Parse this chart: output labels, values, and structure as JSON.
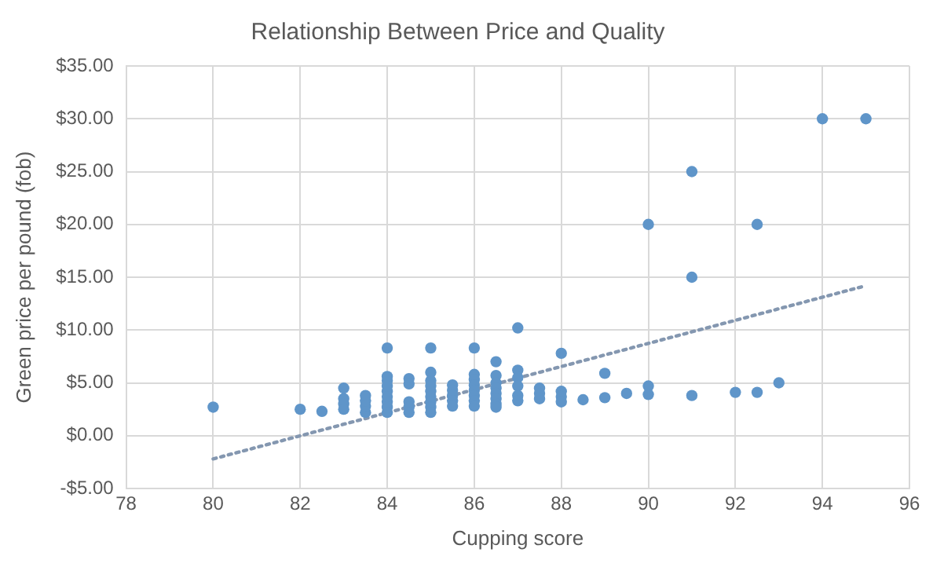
{
  "chart_data": {
    "type": "scatter",
    "title": "Relationship Between Price and Quality",
    "xlabel": "Cupping score",
    "ylabel": "Green price per pound (fob)",
    "xlim": [
      78,
      96
    ],
    "xticks": [
      78,
      80,
      82,
      84,
      86,
      88,
      90,
      92,
      94,
      96
    ],
    "ylim": [
      -5,
      35
    ],
    "yticks": [
      {
        "value": -5,
        "label": "-$5.00"
      },
      {
        "value": 0,
        "label": "$0.00"
      },
      {
        "value": 5,
        "label": "$5.00"
      },
      {
        "value": 10,
        "label": "$10.00"
      },
      {
        "value": 15,
        "label": "$15.00"
      },
      {
        "value": 20,
        "label": "$20.00"
      },
      {
        "value": 25,
        "label": "$25.00"
      },
      {
        "value": 30,
        "label": "$30.00"
      },
      {
        "value": 35,
        "label": "$35.00"
      }
    ],
    "grid": true,
    "legend": false,
    "marker": "circle",
    "series": [
      {
        "color": "#5f95c9",
        "x": [
          80,
          82,
          82.5,
          83,
          83,
          83,
          83,
          83.5,
          83.5,
          83.5,
          83.5,
          84,
          84,
          84,
          84,
          84,
          84,
          84,
          84,
          84,
          84.5,
          84.5,
          84.5,
          84.5,
          84.5,
          85,
          85,
          85,
          85,
          85,
          85,
          85,
          85,
          85,
          85.5,
          85.5,
          85.5,
          85.5,
          85.5,
          86,
          86,
          86,
          86,
          86,
          86,
          86,
          86,
          86.5,
          86.5,
          86.5,
          86.5,
          86.5,
          86.5,
          86.5,
          86.5,
          87,
          87,
          87,
          87,
          87,
          87,
          87.5,
          87.5,
          87.5,
          88,
          88,
          88,
          88,
          88.5,
          89,
          89,
          89.5,
          90,
          90,
          90,
          91,
          91,
          91,
          92,
          92.5,
          92.5,
          93,
          94,
          95
        ],
        "values": [
          2.7,
          2.5,
          2.3,
          4.5,
          3.5,
          3.0,
          2.5,
          2.2,
          2.8,
          3.3,
          3.8,
          8.3,
          2.2,
          2.7,
          3.2,
          3.7,
          4.2,
          4.7,
          5.2,
          5.6,
          5.4,
          4.9,
          3.2,
          2.7,
          2.2,
          8.3,
          6.0,
          5.2,
          4.7,
          4.2,
          3.7,
          3.2,
          2.7,
          2.2,
          4.8,
          4.3,
          3.8,
          3.3,
          2.8,
          8.3,
          5.8,
          5.3,
          4.8,
          4.3,
          3.8,
          3.3,
          2.8,
          7.0,
          5.7,
          5.0,
          4.5,
          4.0,
          3.5,
          3.0,
          2.7,
          10.2,
          6.2,
          5.5,
          4.7,
          3.8,
          3.3,
          4.5,
          4.0,
          3.5,
          7.8,
          4.2,
          3.7,
          3.2,
          3.4,
          5.9,
          3.6,
          4.0,
          20,
          4.7,
          3.9,
          25,
          15,
          3.8,
          4.1,
          20,
          4.1,
          5.0,
          30,
          30
        ]
      },
      {
        "type": "line",
        "color": "#8497b0",
        "marker": "none",
        "line_style": "dotted",
        "x": [
          80,
          95
        ],
        "values": [
          -2.2,
          14.2
        ]
      }
    ]
  }
}
